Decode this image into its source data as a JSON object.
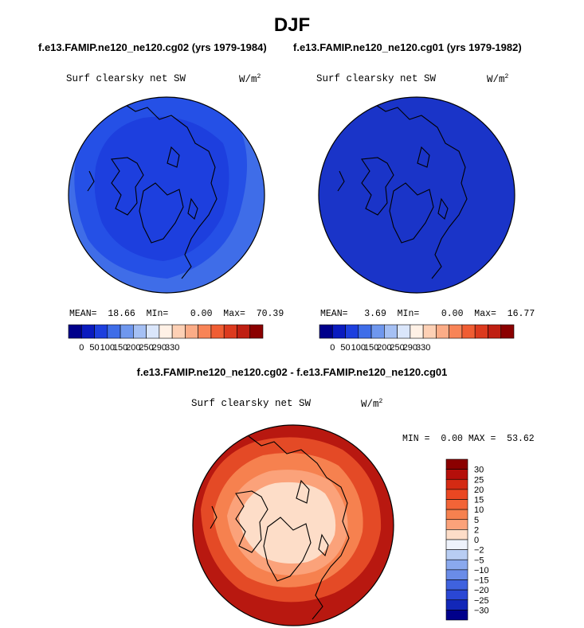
{
  "page_title": "DJF",
  "case_titles": {
    "left": "f.e13.FAMIP.ne120_ne120.cg02 (yrs 1979-1984)",
    "right": "f.e13.FAMIP.ne120_ne120.cg01 (yrs 1979-1982)",
    "difference": "f.e13.FAMIP.ne120_ne120.cg02 - f.e13.FAMIP.ne120_ne120.cg01"
  },
  "panels": {
    "cg02": {
      "variable": "Surf clearsky net SW",
      "units_base": "W/m",
      "units_exp": "2",
      "mean_label": "MEAN=",
      "mean": "18.66",
      "min_label": "MIn=",
      "min": "0.00",
      "max_label": "Max=",
      "max": "70.39"
    },
    "cg01": {
      "variable": "Surf clearsky net SW",
      "units_base": "W/m",
      "units_exp": "2",
      "mean_label": "MEAN=",
      "mean": "3.69",
      "min_label": "MIn=",
      "min": "0.00",
      "max_label": "Max=",
      "max": "16.77"
    },
    "diff": {
      "variable": "Surf clearsky net SW",
      "units_base": "W/m",
      "units_exp": "2",
      "min_label": "MIN =",
      "min": "0.00",
      "max_label": "MAX =",
      "max": "53.62"
    }
  },
  "chart_data": [
    {
      "type": "heatmap",
      "projection": "north polar stereographic",
      "panel": "cg02",
      "title": "Surf clearsky net SW",
      "units": "W/m^2",
      "colorbar": {
        "orientation": "horizontal",
        "tick_labels": [
          "0",
          "50",
          "100",
          "150",
          "200",
          "250",
          "290",
          "330"
        ],
        "colors": [
          "#00008b",
          "#0a1bbf",
          "#1d3fde",
          "#3f6de8",
          "#6f97ee",
          "#a5c0f4",
          "#dae6fb",
          "#fff1e6",
          "#fdd0b5",
          "#fbac87",
          "#f88457",
          "#f05d33",
          "#dc3a1e",
          "#bf1f12",
          "#8b0000"
        ]
      },
      "field_levels": [
        {
          "band": "high latitudes / pole",
          "color": "#1d3fde"
        },
        {
          "band": "mid ring",
          "color": "#2550e6"
        },
        {
          "band": "outer ring",
          "color": "#3f6de8"
        }
      ],
      "stats": {
        "mean": 18.66,
        "min": 0.0,
        "max": 70.39
      }
    },
    {
      "type": "heatmap",
      "projection": "north polar stereographic",
      "panel": "cg01",
      "title": "Surf clearsky net SW",
      "units": "W/m^2",
      "colorbar": {
        "orientation": "horizontal",
        "tick_labels": [
          "0",
          "50",
          "100",
          "150",
          "200",
          "250",
          "290",
          "330"
        ],
        "colors": [
          "#00008b",
          "#0a1bbf",
          "#1d3fde",
          "#3f6de8",
          "#6f97ee",
          "#a5c0f4",
          "#dae6fb",
          "#fff1e6",
          "#fdd0b5",
          "#fbac87",
          "#f88457",
          "#f05d33",
          "#dc3a1e",
          "#bf1f12",
          "#8b0000"
        ]
      },
      "field_levels": [
        {
          "band": "whole domain",
          "color": "#1a34c8"
        }
      ],
      "stats": {
        "mean": 3.69,
        "min": 0.0,
        "max": 16.77
      }
    },
    {
      "type": "heatmap",
      "projection": "north polar stereographic",
      "panel": "difference",
      "title": "Surf clearsky net SW",
      "units": "W/m^2",
      "colorbar": {
        "orientation": "vertical",
        "tick_labels": [
          "30",
          "25",
          "20",
          "15",
          "10",
          "5",
          "2",
          "0",
          "−2",
          "−5",
          "−10",
          "−15",
          "−20",
          "−25",
          "−30"
        ],
        "colors": [
          "#8b0000",
          "#b50f0a",
          "#d42a13",
          "#ea4722",
          "#f26437",
          "#f6814f",
          "#fba27a",
          "#fdddc8",
          "#eef2fb",
          "#b8cdf3",
          "#8aa9ee",
          "#6a8ce8",
          "#3f62de",
          "#2a47d4",
          "#1227b8",
          "#00008b"
        ]
      },
      "field_levels": [
        {
          "band": "outer ring",
          "color": "#b81810"
        },
        {
          "band": "subpolar",
          "color": "#e44a26"
        },
        {
          "band": "near pole",
          "color": "#fde3d0"
        }
      ],
      "stats": {
        "min": 0.0,
        "max": 53.62
      }
    }
  ]
}
